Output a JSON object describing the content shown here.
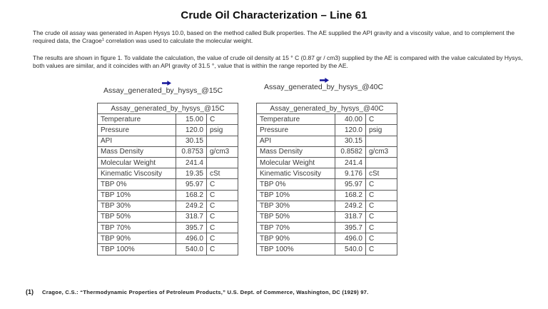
{
  "doc": {
    "title": "Crude Oil Characterization – Line 61",
    "paragraph1": {
      "before": "The crude oil assay was generated in Aspen Hysys 10.0, based on the method called Bulk properties. The AE supplied the API gravity and a viscosity value, and to complement the required data, the Cragoe",
      "sup": "1",
      "after": " correlation was used to calculate the molecular weight."
    },
    "paragraph2": "The results are shown in figure 1. To validate the calculation, the value of crude oil density at 15 ° C (0.87 gr / cm3) supplied by the AE is compared with the value calculated by Hysys, both values are similar, and it coincides with an API gravity of 31.5 °, value that is within the range reported by the AE."
  },
  "icons": {
    "stream_arrow_color": "#16169b"
  },
  "tables": [
    {
      "caption": "Assay_generated_by_hysys_@15C",
      "header": "Assay_generated_by_hysys_@15C",
      "rows": [
        [
          "Temperature",
          "15.00",
          "C"
        ],
        [
          "Pressure",
          "120.0",
          "psig"
        ],
        [
          "API",
          "30.15",
          ""
        ],
        [
          "Mass Density",
          "0.8753",
          "g/cm3"
        ],
        [
          "Molecular Weight",
          "241.4",
          ""
        ],
        [
          "Kinematic Viscosity",
          "19.35",
          "cSt"
        ],
        [
          "TBP 0%",
          "95.97",
          "C"
        ],
        [
          "TBP 10%",
          "168.2",
          "C"
        ],
        [
          "TBP 30%",
          "249.2",
          "C"
        ],
        [
          "TBP 50%",
          "318.7",
          "C"
        ],
        [
          "TBP 70%",
          "395.7",
          "C"
        ],
        [
          "TBP 90%",
          "496.0",
          "C"
        ],
        [
          "TBP 100%",
          "540.0",
          "C"
        ]
      ]
    },
    {
      "caption": "Assay_generated_by_hysys_@40C",
      "header": "Assay_generated_by_hysys_@40C",
      "rows": [
        [
          "Temperature",
          "40.00",
          "C"
        ],
        [
          "Pressure",
          "120.0",
          "psig"
        ],
        [
          "API",
          "30.15",
          ""
        ],
        [
          "Mass Density",
          "0.8582",
          "g/cm3"
        ],
        [
          "Molecular Weight",
          "241.4",
          ""
        ],
        [
          "Kinematic Viscosity",
          "9.176",
          "cSt"
        ],
        [
          "TBP 0%",
          "95.97",
          "C"
        ],
        [
          "TBP 10%",
          "168.2",
          "C"
        ],
        [
          "TBP 30%",
          "249.2",
          "C"
        ],
        [
          "TBP 50%",
          "318.7",
          "C"
        ],
        [
          "TBP 70%",
          "395.7",
          "C"
        ],
        [
          "TBP 90%",
          "496.0",
          "C"
        ],
        [
          "TBP 100%",
          "540.0",
          "C"
        ]
      ]
    }
  ],
  "footnote": {
    "marker": "(1)",
    "text": "Cragoe, C.S.: “Thermodynamic Properties of Petroleum Products,” U.S. Dept. of Commerce, Washington, DC (1929) 97."
  }
}
